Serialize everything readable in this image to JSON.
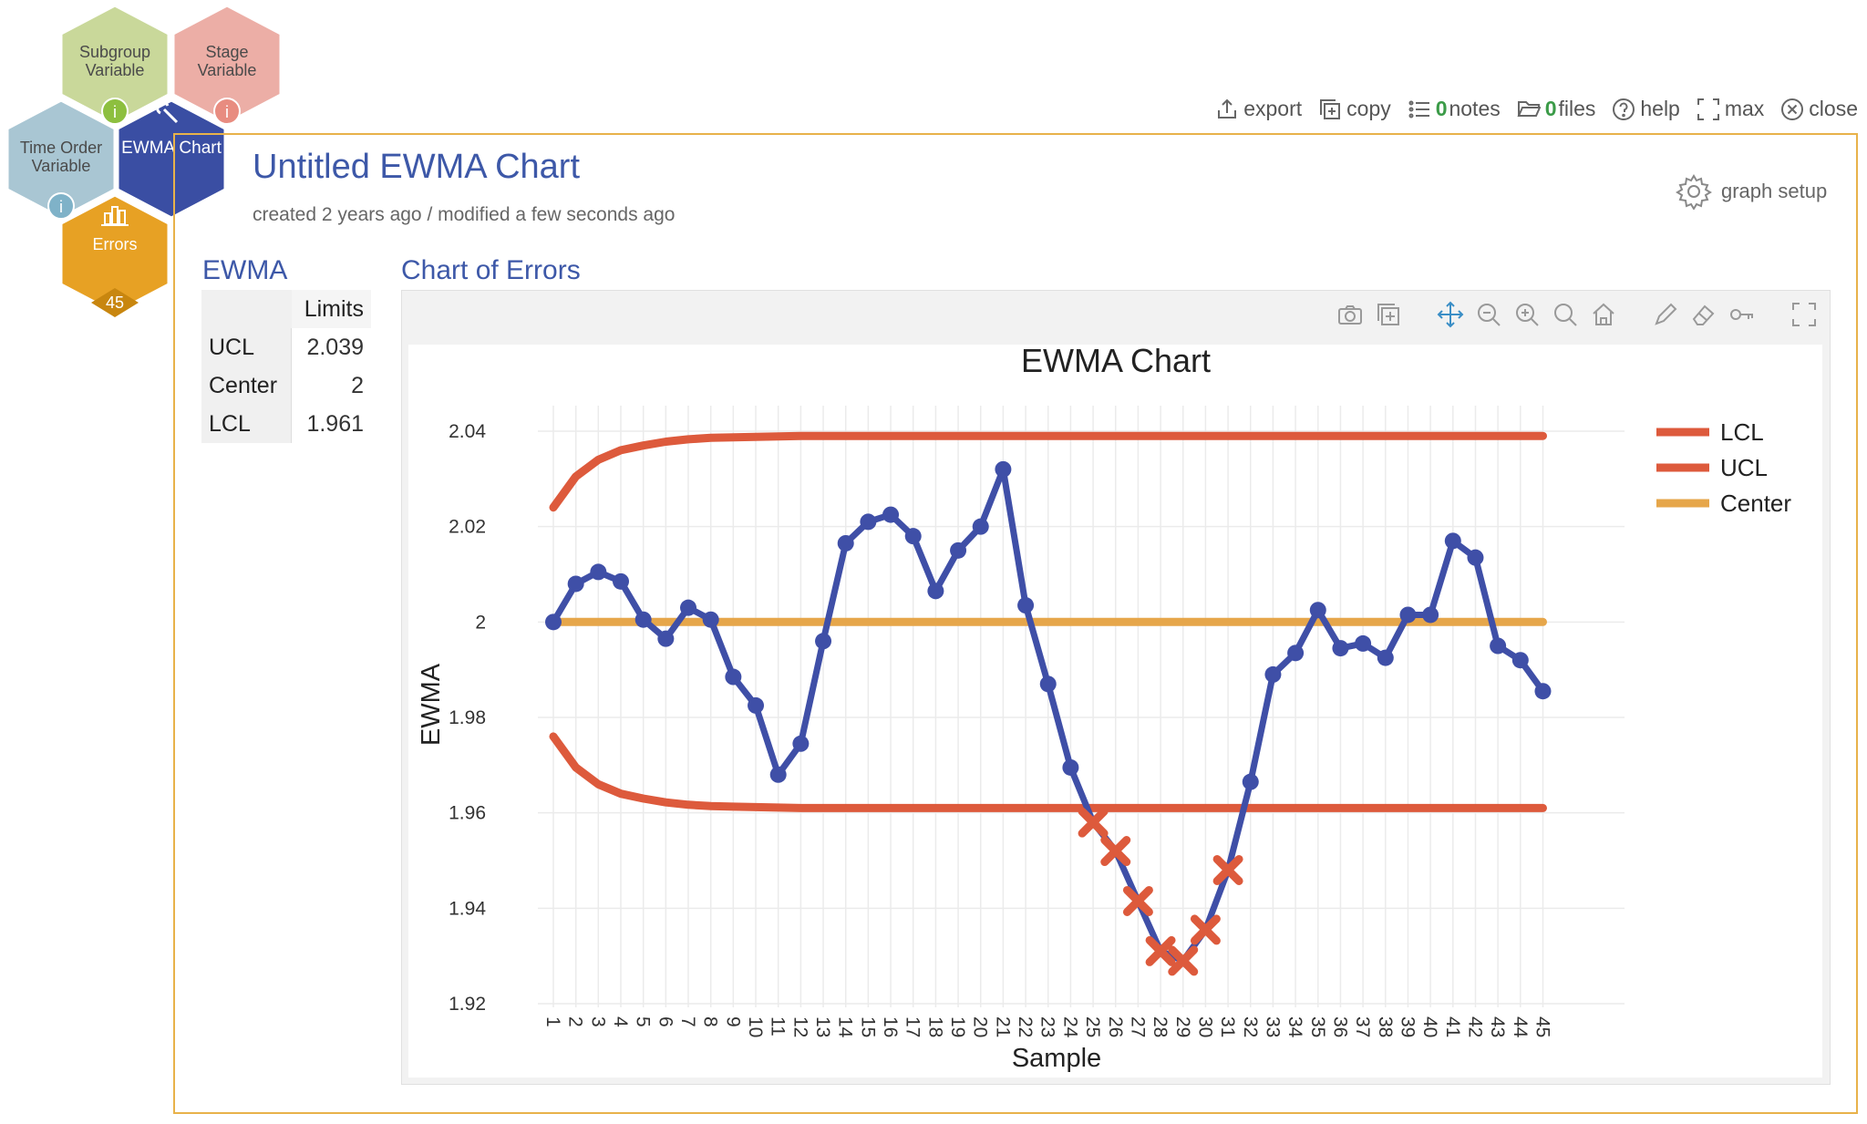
{
  "nav": {
    "subgroup": {
      "line1": "Subgroup",
      "line2": "Variable"
    },
    "stage": {
      "line1": "Stage",
      "line2": "Variable"
    },
    "time_order": {
      "line1": "Time Order",
      "line2": "Variable"
    },
    "ewma": {
      "label": "EWMA Chart"
    },
    "errors": {
      "label": "Errors",
      "count": "45"
    }
  },
  "colors": {
    "subgroup": "#c9d89a",
    "stage": "#ecaea6",
    "time_order": "#a9c6d3",
    "ewma": "#3a4ea3",
    "errors": "#e7a124",
    "panel_border": "#e8b24a",
    "title": "#3d58a8",
    "series": "#3f4fa7",
    "limit": "#dd5a3c",
    "center": "#e6a64a",
    "out_marker": "#dd5a3c"
  },
  "toolbar": {
    "export": "export",
    "copy": "copy",
    "notes_count": "0",
    "notes": "notes",
    "files_count": "0",
    "files": "files",
    "help": "help",
    "max": "max",
    "close": "close"
  },
  "header": {
    "title": "Untitled EWMA Chart",
    "meta": "created 2 years ago / modified a few seconds ago",
    "graph_setup": "graph setup"
  },
  "ewma_panel": {
    "heading": "EWMA",
    "limits_header": "Limits",
    "rows": [
      {
        "label": "UCL",
        "value": "2.039"
      },
      {
        "label": "Center",
        "value": "2"
      },
      {
        "label": "LCL",
        "value": "1.961"
      }
    ]
  },
  "chart_heading": "Chart of Errors",
  "chart_data": {
    "type": "line",
    "title": "EWMA Chart",
    "xlabel": "Sample",
    "ylabel": "EWMA",
    "categories": [
      "1",
      "2",
      "3",
      "4",
      "5",
      "6",
      "7",
      "8",
      "9",
      "10",
      "11",
      "12",
      "13",
      "14",
      "15",
      "16",
      "17",
      "18",
      "19",
      "20",
      "21",
      "22",
      "23",
      "24",
      "25",
      "26",
      "27",
      "28",
      "29",
      "30",
      "31",
      "32",
      "33",
      "34",
      "35",
      "36",
      "37",
      "38",
      "39",
      "40",
      "41",
      "42",
      "43",
      "44",
      "45"
    ],
    "ylim": [
      1.92,
      2.04
    ],
    "yticks": [
      "2.04",
      "2.02",
      "2",
      "1.98",
      "1.96",
      "1.94",
      "1.92"
    ],
    "ytick_values": [
      2.04,
      2.02,
      2.0,
      1.98,
      1.96,
      1.94,
      1.92
    ],
    "grid": true,
    "legend_position": "top-right",
    "series": [
      {
        "name": "EWMA",
        "values": [
          2.0,
          2.008,
          2.0105,
          2.0085,
          2.0005,
          1.9965,
          2.003,
          2.0005,
          1.9885,
          1.9825,
          1.968,
          1.9745,
          1.996,
          2.0165,
          2.021,
          2.0225,
          2.018,
          2.0065,
          2.015,
          2.02,
          2.032,
          2.0035,
          1.987,
          1.9695,
          1.958,
          1.952,
          1.9415,
          1.931,
          1.929,
          1.9355,
          1.948,
          1.9665,
          1.989,
          1.9935,
          2.0025,
          1.9945,
          1.9955,
          1.9925,
          2.0015,
          2.0015,
          2.017,
          2.0135,
          1.995,
          1.992,
          1.9855
        ]
      },
      {
        "name": "LCL",
        "values": [
          1.976,
          1.9695,
          1.966,
          1.964,
          1.963,
          1.9622,
          1.9617,
          1.9614,
          1.9613,
          1.9612,
          1.9611,
          1.961,
          1.961,
          1.961,
          1.961,
          1.961,
          1.961,
          1.961,
          1.961,
          1.961,
          1.961,
          1.961,
          1.961,
          1.961,
          1.961,
          1.961,
          1.961,
          1.961,
          1.961,
          1.961,
          1.961,
          1.961,
          1.961,
          1.961,
          1.961,
          1.961,
          1.961,
          1.961,
          1.961,
          1.961,
          1.961,
          1.961,
          1.961,
          1.961,
          1.961
        ]
      },
      {
        "name": "UCL",
        "values": [
          2.024,
          2.0305,
          2.034,
          2.036,
          2.037,
          2.0378,
          2.0383,
          2.0386,
          2.0387,
          2.0388,
          2.0389,
          2.039,
          2.039,
          2.039,
          2.039,
          2.039,
          2.039,
          2.039,
          2.039,
          2.039,
          2.039,
          2.039,
          2.039,
          2.039,
          2.039,
          2.039,
          2.039,
          2.039,
          2.039,
          2.039,
          2.039,
          2.039,
          2.039,
          2.039,
          2.039,
          2.039,
          2.039,
          2.039,
          2.039,
          2.039,
          2.039,
          2.039,
          2.039,
          2.039,
          2.039
        ]
      },
      {
        "name": "Center",
        "values": [
          2,
          2,
          2,
          2,
          2,
          2,
          2,
          2,
          2,
          2,
          2,
          2,
          2,
          2,
          2,
          2,
          2,
          2,
          2,
          2,
          2,
          2,
          2,
          2,
          2,
          2,
          2,
          2,
          2,
          2,
          2,
          2,
          2,
          2,
          2,
          2,
          2,
          2,
          2,
          2,
          2,
          2,
          2,
          2,
          2
        ]
      }
    ],
    "out_of_control": [
      25,
      26,
      27,
      28,
      29,
      30,
      31
    ],
    "legend": [
      "LCL",
      "UCL",
      "Center"
    ]
  }
}
